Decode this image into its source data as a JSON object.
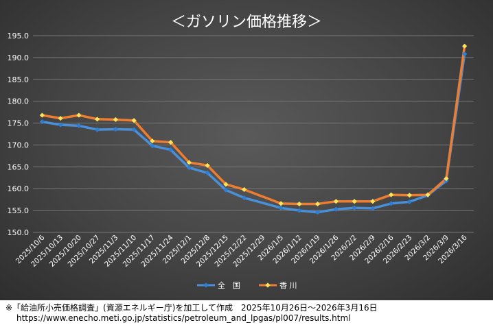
{
  "chart_data": {
    "type": "line",
    "title": "＜ガソリン価格推移＞",
    "xlabel": "",
    "ylabel": "",
    "ylim": [
      150.0,
      195.0
    ],
    "y_ticks": [
      "150.0",
      "155.0",
      "160.0",
      "165.0",
      "170.0",
      "175.0",
      "180.0",
      "185.0",
      "190.0",
      "195.0"
    ],
    "categories": [
      "2025/10/6",
      "2025/10/13",
      "2025/10/20",
      "2025/10/27",
      "2025/11/3",
      "2025/11/10",
      "2025/11/17",
      "2025/11/24",
      "2025/12/1",
      "2025/12/8",
      "2025/12/15",
      "2025/12/22",
      "2025/12/29",
      "2026/1/5",
      "2026/1/12",
      "2026/1/19",
      "2026/1/26",
      "2026/2/2",
      "2026/2/9",
      "2026/2/16",
      "2026/2/23",
      "2026/3/2",
      "2026/3/9",
      "2026/3/16"
    ],
    "series": [
      {
        "name": "全　国",
        "color": "#4a90d9",
        "marker_color": "#2f7fd6",
        "values": [
          175.3,
          174.6,
          174.4,
          173.5,
          173.6,
          173.5,
          169.8,
          168.9,
          164.8,
          163.6,
          159.7,
          157.9,
          null,
          155.6,
          155.0,
          154.6,
          155.3,
          155.6,
          155.5,
          156.6,
          157.0,
          158.5,
          161.8,
          190.8
        ]
      },
      {
        "name": "香 川",
        "color": "#ed7d31",
        "marker_color": "#ffe35a",
        "values": [
          176.8,
          176.1,
          176.8,
          175.9,
          175.8,
          175.6,
          170.9,
          170.6,
          166.0,
          165.3,
          161.0,
          159.8,
          null,
          156.6,
          156.5,
          156.5,
          157.1,
          157.1,
          157.1,
          158.6,
          158.5,
          158.6,
          162.3,
          192.6
        ]
      }
    ],
    "grid": true,
    "legend": "bottom"
  },
  "footnote": {
    "line1": "※「給油所小売価格調査」(資源エネルギー庁)を加工して作成　2025年10月26日～2026年3月16日",
    "line2": "https://www.enecho.meti.go.jp/statistics/petroleum_and_lpgas/pl007/results.html"
  }
}
